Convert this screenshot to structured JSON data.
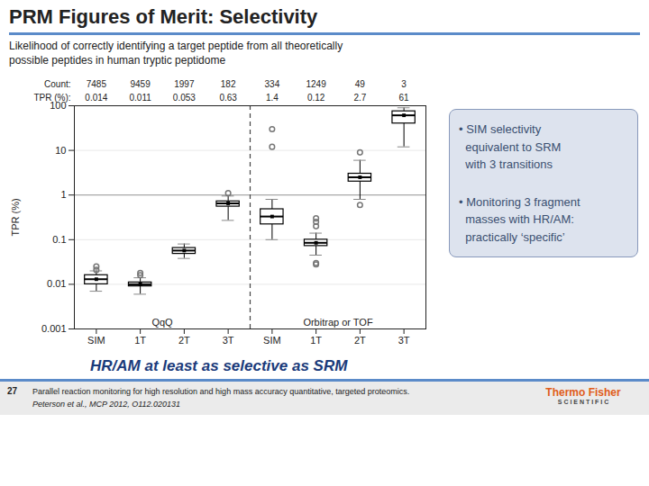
{
  "chart_data": {
    "type": "box",
    "title": "PRM Figures of Merit: Selectivity",
    "subtitle": "Likelihood of correctly identifying a target peptide from all theoretically\npossible peptides in human tryptic peptidome",
    "categories": [
      "SIM",
      "1T",
      "2T",
      "3T",
      "SIM",
      "1T",
      "2T",
      "3T"
    ],
    "groups": [
      "QqQ",
      "QqQ",
      "QqQ",
      "QqQ",
      "Orbitrap or TOF",
      "Orbitrap or TOF",
      "Orbitrap or TOF",
      "Orbitrap or TOF"
    ],
    "boxes": [
      {
        "q1": 0.01,
        "median": 0.013,
        "q3": 0.016,
        "whislo": 0.007,
        "whishi": 0.02,
        "mean": 0.013,
        "fliers": [
          0.021,
          0.025
        ]
      },
      {
        "q1": 0.009,
        "median": 0.01,
        "q3": 0.011,
        "whislo": 0.006,
        "whishi": 0.014,
        "mean": 0.01,
        "fliers": [
          0.016,
          0.018
        ]
      },
      {
        "q1": 0.048,
        "median": 0.057,
        "q3": 0.065,
        "whislo": 0.038,
        "whishi": 0.08,
        "mean": 0.057,
        "fliers": []
      },
      {
        "q1": 0.55,
        "median": 0.65,
        "q3": 0.72,
        "whislo": 0.27,
        "whishi": 0.95,
        "mean": 0.65,
        "fliers": [
          1.1
        ]
      },
      {
        "q1": 0.22,
        "median": 0.33,
        "q3": 0.48,
        "whislo": 0.1,
        "whishi": 0.8,
        "mean": 0.33,
        "fliers": [
          12.0,
          30.0
        ]
      },
      {
        "q1": 0.072,
        "median": 0.085,
        "q3": 0.1,
        "whislo": 0.045,
        "whishi": 0.14,
        "mean": 0.085,
        "fliers": [
          0.2,
          0.25,
          0.3,
          0.03,
          0.028
        ]
      },
      {
        "q1": 2.0,
        "median": 2.5,
        "q3": 3.0,
        "whislo": 0.8,
        "whishi": 6.0,
        "mean": 2.5,
        "fliers": [
          9.0,
          0.6
        ]
      },
      {
        "q1": 40.0,
        "median": 61.0,
        "q3": 75.0,
        "whislo": 12.0,
        "whishi": 90.0,
        "mean": 61.0,
        "fliers": []
      }
    ],
    "header_rows": [
      {
        "label": "Count:",
        "values": [
          7485,
          9459,
          1997,
          182,
          334,
          1249,
          49,
          3
        ]
      },
      {
        "label": "TPR (%):",
        "values": [
          0.014,
          0.011,
          0.053,
          0.63,
          1.4,
          0.12,
          2.7,
          61
        ]
      }
    ],
    "reference_line": 1,
    "ylabel": "TPR (%)",
    "log": "y",
    "ylim": [
      0.001,
      100
    ],
    "yticks": [
      0.001,
      0.01,
      0.1,
      1,
      10,
      100
    ],
    "grid": true,
    "annotations": [
      "• SIM selectivity\n  equivalent to SRM\n  with 3 transitions",
      "• Monitoring 3 fragment\n  masses with HR/AM:\n  practically ‘specific’",
      "HR/AM at least as selective as SRM",
      "27",
      "Parallel reaction monitoring for high resolution and high mass accuracy quantitative, targeted proteomics.",
      "Peterson et al., MCP 2012, O112.020131",
      "Thermo Fisher",
      "S C I E N T I F I C"
    ]
  }
}
